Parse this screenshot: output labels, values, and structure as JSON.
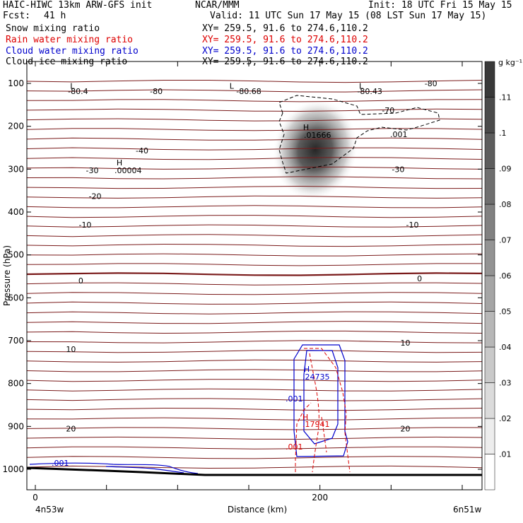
{
  "header": {
    "model": "HAIC-HIWC 13km ARW-GFS init",
    "org": "NCAR/MMM",
    "init": "Init: 18 UTC Fri 15 May 15",
    "fcst_label": "Fcst:",
    "fcst_value": "41 h",
    "valid": "Valid: 11 UTC Sun 17 May 15 (08 LST Sun 17 May 15)",
    "fields": [
      {
        "label": "Snow mixing ratio",
        "xy": "XY= 259.5, 91.6 to 274.6,110.2",
        "color": "#000000"
      },
      {
        "label": "Rain water mixing ratio",
        "xy": "XY= 259.5, 91.6 to 274.6,110.2",
        "color": "#dd0000"
      },
      {
        "label": "Cloud water mixing ratio",
        "xy": "XY= 259.5, 91.6 to 274.6,110.2",
        "color": "#0000cc"
      },
      {
        "label": "Cloud ice mixing ratio",
        "xy": "XY= 259.5, 91.6 to 274.6,110.2",
        "color": "#000000"
      }
    ]
  },
  "chart_data": {
    "type": "line",
    "xlabel": "Distance (km)",
    "ylabel": "Pressure (hPa)",
    "xlim": [
      0,
      300
    ],
    "ylim": [
      1050,
      50
    ],
    "x_ticks": [
      "0",
      "200"
    ],
    "x_tick_values": [
      0,
      200
    ],
    "y_ticks": [
      "100",
      "200",
      "300",
      "400",
      "500",
      "600",
      "700",
      "800",
      "900",
      "1000"
    ],
    "y_tick_values": [
      100,
      200,
      300,
      400,
      500,
      600,
      700,
      800,
      900,
      1000
    ],
    "endpoints": {
      "left": "4n53w",
      "right": "6n51w"
    },
    "colorbar": {
      "unit": "g kg⁻¹",
      "labels": [
        ".01",
        ".02",
        ".03",
        ".04",
        ".05",
        ".06",
        ".07",
        ".08",
        ".09",
        ".1",
        ".11"
      ],
      "values": [
        0.01,
        0.02,
        0.03,
        0.04,
        0.05,
        0.06,
        0.07,
        0.08,
        0.09,
        0.1,
        0.11
      ]
    },
    "temperature_contours": {
      "color": "#7a1a1a",
      "labels": [
        {
          "text": "-80.4",
          "x": 30,
          "p": 118
        },
        {
          "text": "-80",
          "x": 85,
          "p": 118
        },
        {
          "text": "-80.68",
          "x": 150,
          "p": 118
        },
        {
          "text": "-80.43",
          "x": 235,
          "p": 118
        },
        {
          "text": "-80",
          "x": 278,
          "p": 100
        },
        {
          "text": "-70",
          "x": 248,
          "p": 163
        },
        {
          "text": "-40",
          "x": 75,
          "p": 257
        },
        {
          "text": "-30",
          "x": 40,
          "p": 303
        },
        {
          "text": "-30",
          "x": 255,
          "p": 300
        },
        {
          "text": "-20",
          "x": 42,
          "p": 363
        },
        {
          "text": "-10",
          "x": 35,
          "p": 430
        },
        {
          "text": "-10",
          "x": 265,
          "p": 430
        },
        {
          "text": "0",
          "x": 32,
          "p": 560
        },
        {
          "text": "0",
          "x": 270,
          "p": 555
        },
        {
          "text": "10",
          "x": 25,
          "p": 720
        },
        {
          "text": "10",
          "x": 260,
          "p": 705
        },
        {
          "text": "20",
          "x": 25,
          "p": 905
        },
        {
          "text": "20",
          "x": 260,
          "p": 905
        }
      ],
      "lows": [
        {
          "text": "L",
          "x": 26,
          "p": 106
        },
        {
          "text": "L",
          "x": 138,
          "p": 106
        },
        {
          "text": "L",
          "x": 229,
          "p": 106
        }
      ]
    },
    "series": [
      {
        "name": "Snow mixing ratio",
        "max_label": "H",
        "max_value": ".01666",
        "x": 190,
        "p": 242
      },
      {
        "name": "Rain water mixing ratio",
        "max_label": "H",
        "max_value": ".17941",
        "x": 190,
        "p": 897,
        "contour": ".001"
      },
      {
        "name": "Cloud water mixing ratio",
        "max_label": "H",
        "max_value": ".24735",
        "x": 192,
        "p": 795,
        "contours": [
          ".001",
          ".001"
        ]
      },
      {
        "name": "Cloud ice mixing ratio",
        "max_label": "H",
        "max_value": ".00004",
        "x": 58,
        "p": 295,
        "contour": ".001"
      }
    ]
  }
}
